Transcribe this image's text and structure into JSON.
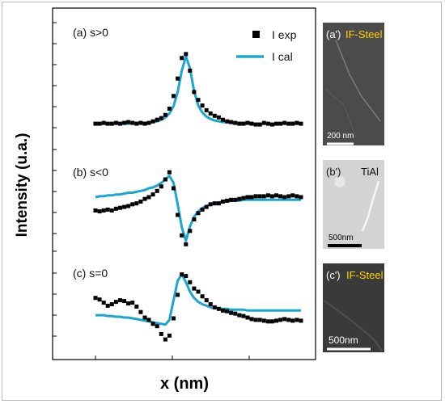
{
  "chart_data": {
    "type": "line",
    "ylabel": "Intensity (u.a.)",
    "xlabel": "x (nm)",
    "legend": {
      "position": "top-right",
      "exp_label": "I exp",
      "cal_label": "I cal"
    },
    "colors": {
      "calc": "#1aa7cf",
      "exp": "#000000"
    },
    "panels": [
      {
        "label": "(a)  s>0",
        "y_range": [
          0,
          1
        ],
        "x": [
          0,
          2,
          4,
          6,
          8,
          10,
          12,
          14,
          16,
          18,
          20,
          22,
          24,
          26,
          28,
          30,
          32,
          34,
          36,
          38,
          40,
          42,
          44,
          46,
          48,
          50,
          52,
          54,
          56,
          58,
          60,
          62,
          64,
          66,
          68,
          70,
          72,
          74,
          76,
          78,
          80,
          82,
          84,
          86,
          88,
          90,
          92,
          94,
          96,
          98,
          100
        ],
        "exp": [
          0.05,
          0.05,
          0.06,
          0.05,
          0.05,
          0.06,
          0.05,
          0.06,
          0.07,
          0.06,
          0.05,
          0.06,
          0.05,
          0.06,
          0.08,
          0.1,
          0.12,
          0.16,
          0.24,
          0.4,
          0.62,
          0.88,
          0.93,
          0.72,
          0.45,
          0.35,
          0.28,
          0.22,
          0.18,
          0.15,
          0.13,
          0.1,
          0.08,
          0.07,
          0.06,
          0.05,
          0.05,
          0.06,
          0.05,
          0.04,
          0.04,
          0.06,
          0.05,
          0.04,
          0.05,
          0.05,
          0.06,
          0.05,
          0.05,
          0.06,
          0.05
        ],
        "calc": [
          0.05,
          0.05,
          0.05,
          0.05,
          0.05,
          0.05,
          0.05,
          0.05,
          0.05,
          0.06,
          0.06,
          0.06,
          0.06,
          0.06,
          0.07,
          0.08,
          0.1,
          0.13,
          0.18,
          0.27,
          0.45,
          0.72,
          0.9,
          0.75,
          0.46,
          0.28,
          0.19,
          0.14,
          0.11,
          0.09,
          0.08,
          0.07,
          0.07,
          0.06,
          0.06,
          0.06,
          0.06,
          0.06,
          0.05,
          0.05,
          0.05,
          0.05,
          0.05,
          0.05,
          0.05,
          0.05,
          0.05,
          0.05,
          0.05,
          0.05,
          0.05
        ]
      },
      {
        "label": "(b)  s<0",
        "y_range": [
          0,
          1
        ],
        "x": [
          0,
          2,
          4,
          6,
          8,
          10,
          12,
          14,
          16,
          18,
          20,
          22,
          24,
          26,
          28,
          30,
          32,
          34,
          36,
          38,
          40,
          42,
          44,
          46,
          48,
          50,
          52,
          54,
          56,
          58,
          60,
          62,
          64,
          66,
          68,
          70,
          72,
          74,
          76,
          78,
          80,
          82,
          84,
          86,
          88,
          90,
          92,
          94,
          96,
          98,
          100
        ],
        "exp": [
          0.45,
          0.44,
          0.45,
          0.46,
          0.45,
          0.47,
          0.48,
          0.49,
          0.5,
          0.52,
          0.53,
          0.55,
          0.58,
          0.6,
          0.63,
          0.67,
          0.72,
          0.8,
          0.88,
          0.7,
          0.4,
          0.17,
          0.07,
          0.22,
          0.35,
          0.42,
          0.46,
          0.49,
          0.52,
          0.53,
          0.53,
          0.55,
          0.56,
          0.57,
          0.57,
          0.58,
          0.59,
          0.6,
          0.6,
          0.61,
          0.61,
          0.61,
          0.62,
          0.61,
          0.62,
          0.61,
          0.6,
          0.61,
          0.62,
          0.61,
          0.6
        ],
        "calc": [
          0.6,
          0.61,
          0.61,
          0.62,
          0.62,
          0.63,
          0.63,
          0.64,
          0.65,
          0.65,
          0.66,
          0.67,
          0.68,
          0.7,
          0.71,
          0.73,
          0.76,
          0.8,
          0.84,
          0.76,
          0.52,
          0.26,
          0.11,
          0.27,
          0.38,
          0.44,
          0.48,
          0.5,
          0.52,
          0.53,
          0.54,
          0.55,
          0.55,
          0.56,
          0.56,
          0.56,
          0.57,
          0.57,
          0.57,
          0.57,
          0.57,
          0.57,
          0.57,
          0.57,
          0.57,
          0.57,
          0.57,
          0.57,
          0.57,
          0.57,
          0.57
        ]
      },
      {
        "label": "(c)  s=0",
        "y_range": [
          0,
          1
        ],
        "x": [
          0,
          2,
          4,
          6,
          8,
          10,
          12,
          14,
          16,
          18,
          20,
          22,
          24,
          26,
          28,
          30,
          32,
          34,
          36,
          38,
          40,
          42,
          44,
          46,
          48,
          50,
          52,
          54,
          56,
          58,
          60,
          62,
          64,
          66,
          68,
          70,
          72,
          74,
          76,
          78,
          80,
          82,
          84,
          86,
          88,
          90,
          92,
          94,
          96,
          98,
          100
        ],
        "exp": [
          0.58,
          0.56,
          0.52,
          0.48,
          0.5,
          0.53,
          0.55,
          0.54,
          0.51,
          0.52,
          0.47,
          0.4,
          0.33,
          0.3,
          0.25,
          0.22,
          0.12,
          0.05,
          0.1,
          0.32,
          0.62,
          0.88,
          0.86,
          0.78,
          0.7,
          0.66,
          0.6,
          0.55,
          0.5,
          0.46,
          0.44,
          0.42,
          0.41,
          0.39,
          0.38,
          0.36,
          0.35,
          0.33,
          0.31,
          0.3,
          0.3,
          0.29,
          0.28,
          0.28,
          0.29,
          0.3,
          0.31,
          0.3,
          0.29,
          0.3,
          0.29
        ],
        "calc": [
          0.36,
          0.36,
          0.36,
          0.35,
          0.35,
          0.34,
          0.34,
          0.33,
          0.33,
          0.32,
          0.31,
          0.3,
          0.29,
          0.28,
          0.27,
          0.26,
          0.25,
          0.24,
          0.3,
          0.55,
          0.8,
          0.88,
          0.78,
          0.66,
          0.58,
          0.53,
          0.5,
          0.48,
          0.46,
          0.45,
          0.45,
          0.44,
          0.44,
          0.43,
          0.43,
          0.43,
          0.43,
          0.42,
          0.42,
          0.42,
          0.42,
          0.42,
          0.42,
          0.42,
          0.42,
          0.42,
          0.42,
          0.42,
          0.42,
          0.42,
          0.42
        ]
      }
    ]
  },
  "images": [
    {
      "label": "(a')",
      "material": "IF-Steel",
      "material_color": "#ffd200",
      "scalebar": "200 nm",
      "background": "#4b4b4b"
    },
    {
      "label": "(b')",
      "material": "TiAl",
      "material_color": "#111111",
      "scalebar": "500nm",
      "background": "#d3d3d3"
    },
    {
      "label": "(c')",
      "material": "IF-Steel",
      "material_color": "#ffd200",
      "scalebar": "500nm",
      "background": "#3a3a3a"
    }
  ]
}
